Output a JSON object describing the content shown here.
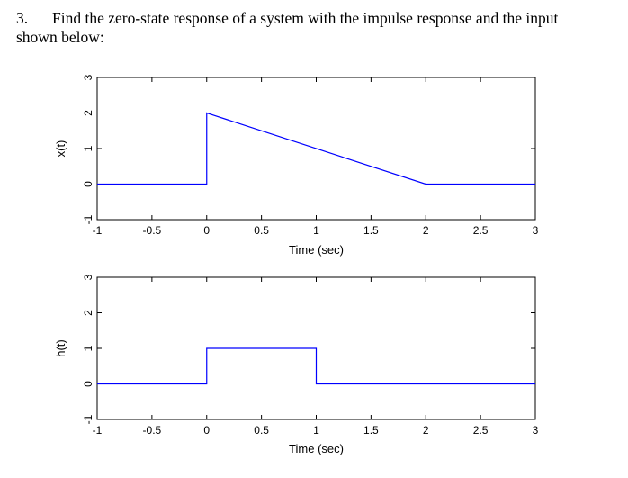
{
  "problem": {
    "number": "3.",
    "line1": "Find the zero-state response of a system with the impulse response and the input",
    "line2": "shown below:"
  },
  "chart_data": [
    {
      "type": "line",
      "ylabel": "x(t)",
      "xlabel": "Time (sec)",
      "xlim": [
        -1,
        3
      ],
      "ylim": [
        -1,
        3
      ],
      "xticks": [
        "-1",
        "-0.5",
        "0",
        "0.5",
        "1",
        "1.5",
        "2",
        "2.5",
        "3"
      ],
      "yticks": [
        "-1",
        "0",
        "1",
        "2",
        "3"
      ],
      "color": "#0000ff",
      "series": [
        {
          "x": [
            -1,
            0,
            0,
            2,
            3
          ],
          "y": [
            0,
            0,
            2,
            0,
            0
          ]
        }
      ]
    },
    {
      "type": "line",
      "ylabel": "h(t)",
      "xlabel": "Time (sec)",
      "xlim": [
        -1,
        3
      ],
      "ylim": [
        -1,
        3
      ],
      "xticks": [
        "-1",
        "-0.5",
        "0",
        "0.5",
        "1",
        "1.5",
        "2",
        "2.5",
        "3"
      ],
      "yticks": [
        "-1",
        "0",
        "1",
        "2",
        "3"
      ],
      "color": "#0000ff",
      "series": [
        {
          "x": [
            -1,
            0,
            0,
            1,
            1,
            3
          ],
          "y": [
            0,
            0,
            1,
            1,
            0,
            0
          ]
        }
      ]
    }
  ]
}
